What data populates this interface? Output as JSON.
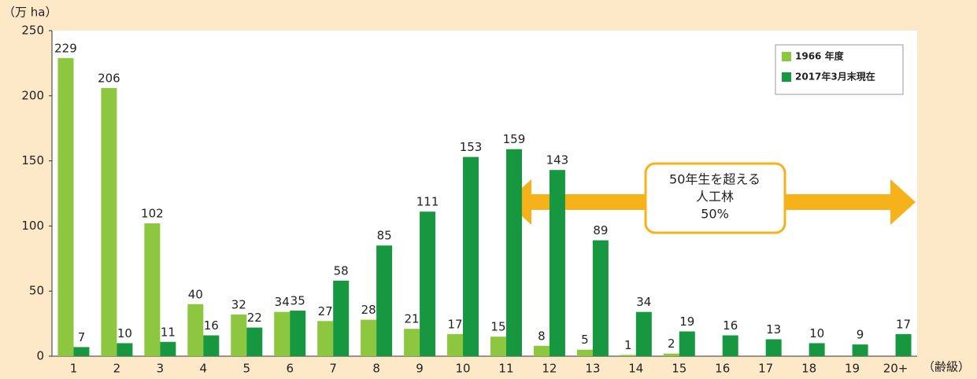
{
  "chart_data": {
    "type": "bar",
    "y_label": "（万 ha）",
    "x_label": "（齢級）",
    "categories": [
      "1",
      "2",
      "3",
      "4",
      "5",
      "6",
      "7",
      "8",
      "9",
      "10",
      "11",
      "12",
      "13",
      "14",
      "15",
      "16",
      "17",
      "18",
      "19",
      "20+"
    ],
    "series": [
      {
        "name": "1966 年度",
        "color": "#8dc63f",
        "values": [
          229,
          206,
          102,
          40,
          32,
          34,
          27,
          28,
          21,
          17,
          15,
          8,
          5,
          1,
          2,
          null,
          null,
          null,
          null,
          null
        ]
      },
      {
        "name": "2017年3月末現在",
        "color": "#17973f",
        "values": [
          7,
          10,
          11,
          16,
          22,
          35,
          58,
          85,
          111,
          153,
          159,
          143,
          89,
          34,
          19,
          16,
          13,
          10,
          9,
          17
        ]
      }
    ],
    "ylim": [
      0,
      250
    ],
    "yticks": [
      0,
      50,
      100,
      150,
      200,
      250
    ],
    "grid": false,
    "legend": "top-right",
    "annotation": [
      "50年生を超える",
      "人工林",
      "50%"
    ]
  }
}
